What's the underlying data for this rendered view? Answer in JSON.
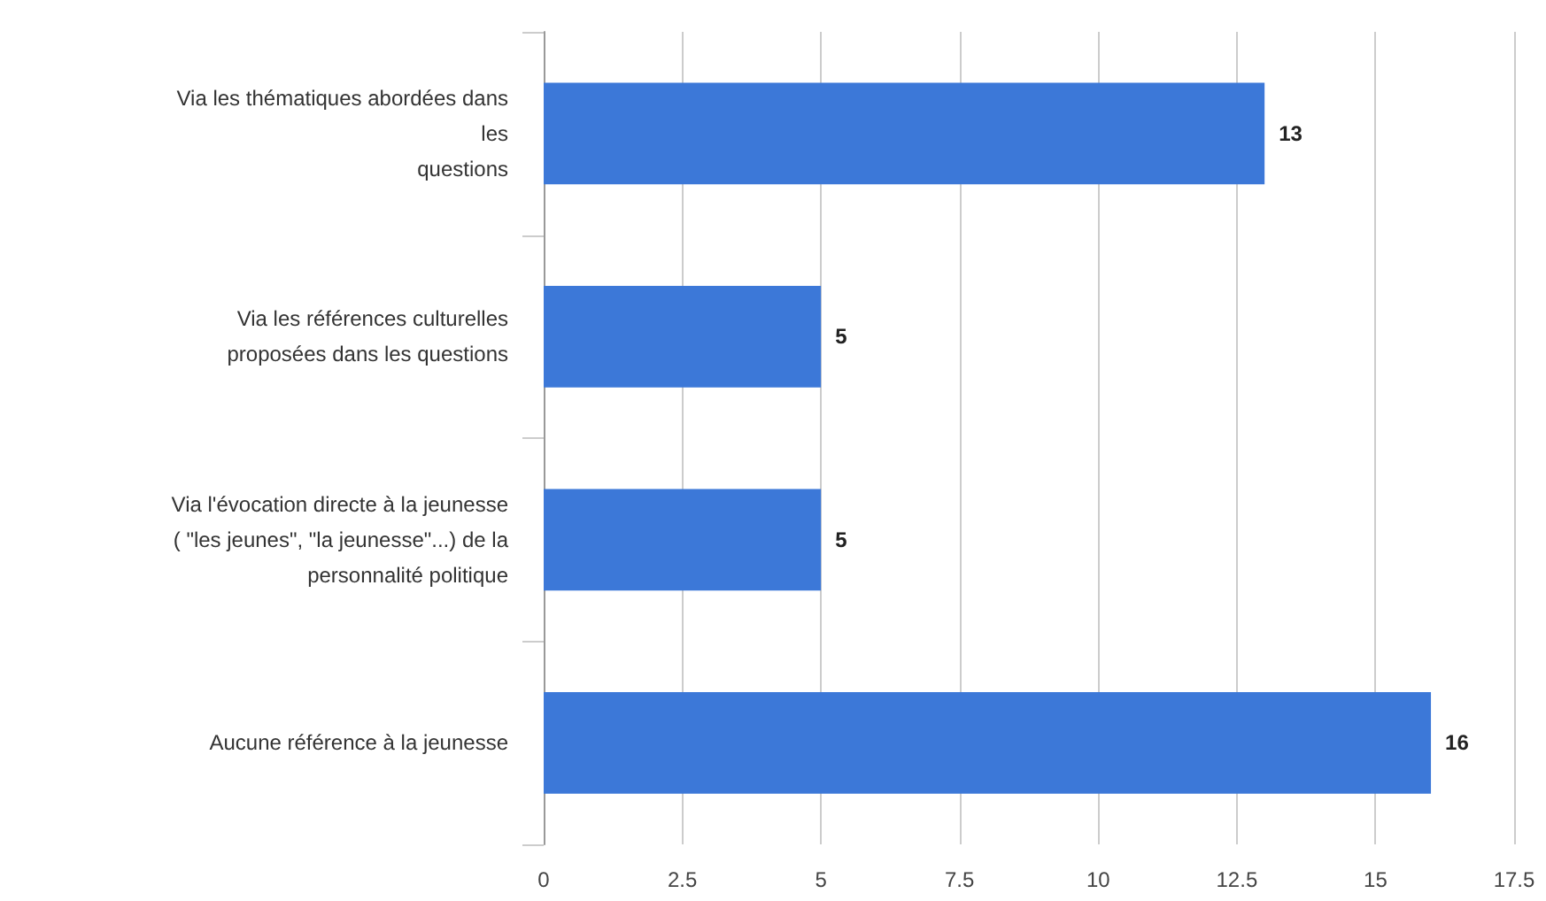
{
  "chart_data": {
    "type": "bar",
    "orientation": "horizontal",
    "categories": [
      "Via les thématiques abordées dans\nles\nquestions",
      "Via les références culturelles\nproposées dans les questions",
      "Via l'évocation directe à la jeunesse\n( \"les jeunes\", \"la jeunesse\"...) de la\npersonnalité politique",
      "Aucune référence à la jeunesse"
    ],
    "values": [
      13,
      5,
      5,
      16
    ],
    "color": "#3c78d8",
    "xlim": [
      0,
      17.5
    ],
    "xticks": [
      0,
      2.5,
      5,
      7.5,
      10,
      12.5,
      15,
      17.5
    ],
    "grid": "x",
    "data_labels": true
  }
}
